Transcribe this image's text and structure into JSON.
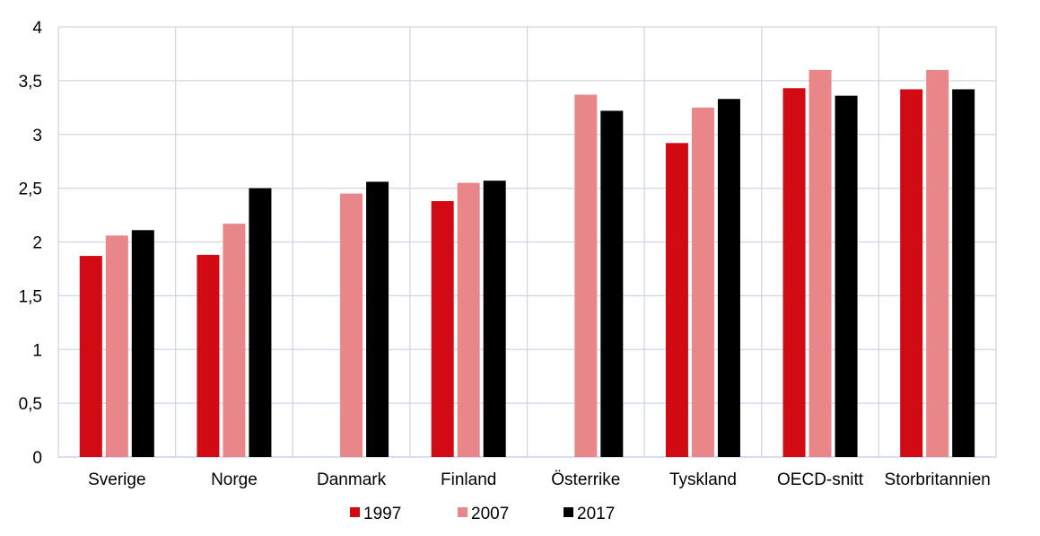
{
  "chart_data": {
    "type": "bar",
    "categories": [
      "Sverige",
      "Norge",
      "Danmark",
      "Finland",
      "Österrike",
      "Tyskland",
      "OECD-snitt",
      "Storbritannien"
    ],
    "series": [
      {
        "name": "1997",
        "color": "#d20a14",
        "values": [
          1.87,
          1.88,
          null,
          2.38,
          null,
          2.92,
          3.43,
          3.42
        ]
      },
      {
        "name": "2007",
        "color": "#e8868a",
        "values": [
          2.06,
          2.17,
          2.45,
          2.55,
          3.37,
          3.25,
          3.6,
          3.6
        ]
      },
      {
        "name": "2017",
        "color": "#000000",
        "values": [
          2.11,
          2.5,
          2.56,
          2.57,
          3.22,
          3.33,
          3.36,
          3.42
        ]
      }
    ],
    "ylim": [
      0,
      4
    ],
    "yticks": [
      "0",
      "0,5",
      "1",
      "1,5",
      "2",
      "2,5",
      "3",
      "3,5",
      "4"
    ],
    "grid": true,
    "legend_position": "bottom-center"
  }
}
